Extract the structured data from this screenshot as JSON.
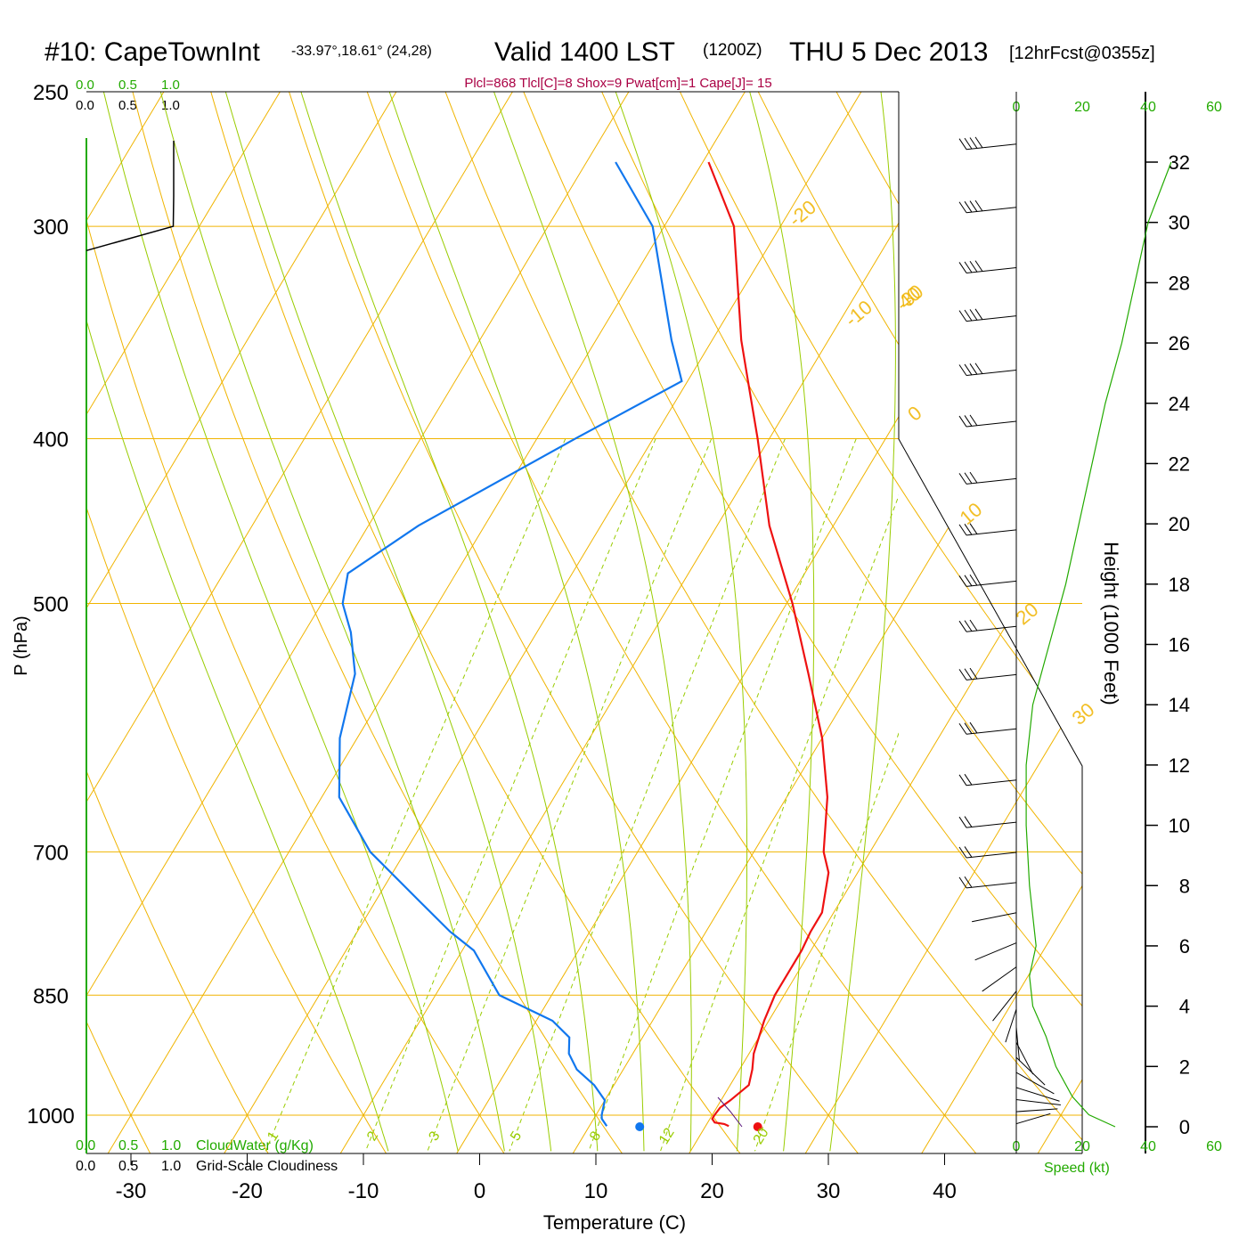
{
  "header": {
    "station": "#10: CapeTownInt",
    "coords": "-33.97°,18.61° (24,28)",
    "valid": "Valid 1400 LST",
    "utc": "(1200Z)",
    "date": "THU 5 Dec 2013",
    "forecast": "[12hrFcst@0355z]",
    "indices": "Plcl=868 Tlcl[C]=8 Shox=9 Pwat[cm]=1 Cape[J]= 15"
  },
  "colors": {
    "isotherm": "#f0b400",
    "adiabat": "#99cc00",
    "mixing": "#99cc00",
    "temperature": "#ee1111",
    "dewpoint": "#1177ee",
    "green_text": "#22aa00",
    "indices_text": "#aa0044"
  },
  "chart_data": {
    "type": "skew-t",
    "title": "#10: CapeTownInt",
    "xlabel": "Temperature (C)",
    "ylabel": "P (hPa)",
    "x_ticks": [
      "-30",
      "-20",
      "-10",
      "0",
      "10",
      "20",
      "30",
      "40"
    ],
    "x_tick_values": [
      -30,
      -20,
      -10,
      0,
      10,
      20,
      30,
      40
    ],
    "p_ticks": [
      "250",
      "300",
      "400",
      "500",
      "700",
      "850",
      "1000"
    ],
    "p_tick_values": [
      250,
      300,
      400,
      500,
      700,
      850,
      1000
    ],
    "p_range": [
      250,
      1050
    ],
    "temperature_series": {
      "name": "Temperature",
      "points": [
        [
          1015,
          22.0
        ],
        [
          1012,
          21.5
        ],
        [
          1010,
          20.6
        ],
        [
          1005,
          20.2
        ],
        [
          1000,
          20.2
        ],
        [
          990,
          20.3
        ],
        [
          980,
          20.8
        ],
        [
          960,
          21.6
        ],
        [
          940,
          21.1
        ],
        [
          920,
          20.4
        ],
        [
          880,
          19.6
        ],
        [
          850,
          19.2
        ],
        [
          800,
          19.2
        ],
        [
          780,
          19.0
        ],
        [
          760,
          19.0
        ],
        [
          720,
          17.5
        ],
        [
          700,
          16.0
        ],
        [
          650,
          13.5
        ],
        [
          600,
          10.0
        ],
        [
          550,
          5.5
        ],
        [
          500,
          0.5
        ],
        [
          450,
          -5.5
        ],
        [
          400,
          -11.0
        ],
        [
          370,
          -14.8
        ],
        [
          350,
          -17.5
        ],
        [
          300,
          -24.0
        ],
        [
          275,
          -29.5
        ]
      ]
    },
    "dewpoint_series": {
      "name": "Dewpoint",
      "points": [
        [
          1015,
          11.5
        ],
        [
          1005,
          10.7
        ],
        [
          1000,
          10.5
        ],
        [
          980,
          10.0
        ],
        [
          960,
          8.3
        ],
        [
          940,
          6.0
        ],
        [
          920,
          4.5
        ],
        [
          900,
          3.7
        ],
        [
          880,
          1.4
        ],
        [
          850,
          -4.5
        ],
        [
          800,
          -9.0
        ],
        [
          780,
          -12.0
        ],
        [
          750,
          -16.0
        ],
        [
          700,
          -23.0
        ],
        [
          650,
          -28.5
        ],
        [
          600,
          -31.5
        ],
        [
          550,
          -33.5
        ],
        [
          520,
          -36.0
        ],
        [
          500,
          -38.2
        ],
        [
          480,
          -39.3
        ],
        [
          450,
          -35.7
        ],
        [
          400,
          -26.7
        ],
        [
          370,
          -20.5
        ],
        [
          350,
          -23.5
        ],
        [
          300,
          -31.0
        ],
        [
          275,
          -37.5
        ]
      ]
    },
    "surface_temp_dot": 24.0,
    "surface_dew_dot": 14.0,
    "isotherm_labels": [
      "-30",
      "-20",
      "-10",
      "0",
      "10",
      "20",
      "30",
      "40"
    ],
    "isotherm_label_values": [
      -30,
      -20,
      -10,
      0,
      10,
      20,
      30,
      40
    ],
    "mixing_ratio_labels": [
      "1",
      "2",
      "3",
      "5",
      "8",
      "12",
      "20"
    ],
    "mixing_ratio_values": [
      1,
      2,
      3,
      5,
      8,
      12,
      20
    ],
    "left_panel": {
      "top_green_ticks": [
        "0.0",
        "0.5",
        "1.0"
      ],
      "top_black_ticks": [
        "0.0",
        "0.5",
        "1.0"
      ],
      "bottom_green_ticks": [
        "0.0",
        "0.5",
        "1.0"
      ],
      "bottom_black_ticks": [
        "0.0",
        "0.5",
        "1.0"
      ],
      "cloudwater_label": "CloudWater (g/Kg)",
      "cloudiness_label": "Grid-Scale Cloudiness",
      "cloudiness_profile": [
        [
          275,
          0.75
        ],
        [
          300,
          0.75
        ],
        [
          310,
          0.0
        ]
      ]
    },
    "wind_panel": {
      "speed_ticks": [
        "0",
        "20",
        "40",
        "60"
      ],
      "speed_tick_values": [
        0,
        20,
        40,
        60
      ],
      "speed_label": "Speed (kt)",
      "height_label": "Height (1000 Feet)",
      "height_ticks": [
        "0",
        "2",
        "4",
        "6",
        "8",
        "10",
        "12",
        "14",
        "16",
        "18",
        "20",
        "22",
        "24",
        "26",
        "28",
        "30",
        "32"
      ],
      "height_tick_values": [
        0,
        2,
        4,
        6,
        8,
        10,
        12,
        14,
        16,
        18,
        20,
        22,
        24,
        26,
        28,
        30,
        32
      ],
      "speed_profile": [
        [
          0,
          30
        ],
        [
          0.4,
          22
        ],
        [
          1,
          17
        ],
        [
          2,
          12
        ],
        [
          3,
          9
        ],
        [
          4,
          5
        ],
        [
          5,
          4
        ],
        [
          6,
          6
        ],
        [
          8,
          4
        ],
        [
          10,
          3
        ],
        [
          12,
          3
        ],
        [
          14,
          5
        ],
        [
          16,
          10
        ],
        [
          18,
          15
        ],
        [
          20,
          19
        ],
        [
          22,
          23
        ],
        [
          24,
          27
        ],
        [
          26,
          32
        ],
        [
          28,
          36
        ],
        [
          30,
          40
        ],
        [
          32,
          47
        ]
      ],
      "barb_levels_kft": [
        0.1,
        0.5,
        0.9,
        1.3,
        1.8,
        2.3,
        2.8,
        3.3,
        3.9,
        4.5,
        5.3,
        6.1,
        7.1,
        8.1,
        9.1,
        10.1,
        11.5,
        13.2,
        15.0,
        16.6,
        18.1,
        19.8,
        21.5,
        23.4,
        25.1,
        26.9,
        28.5,
        30.5,
        32.6
      ]
    }
  }
}
